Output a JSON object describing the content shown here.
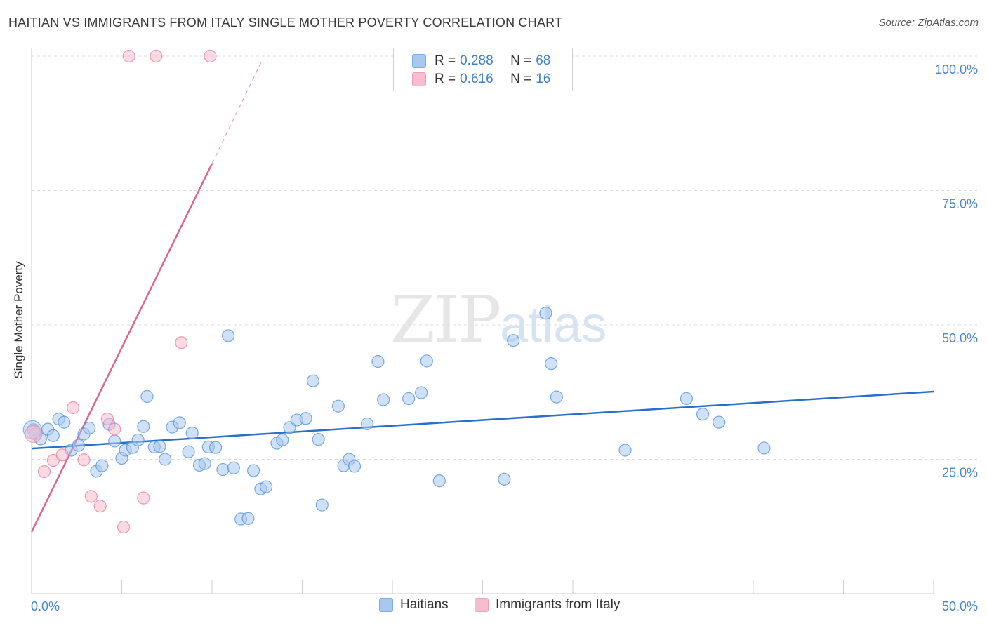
{
  "header": {
    "title": "HAITIAN VS IMMIGRANTS FROM ITALY SINGLE MOTHER POVERTY CORRELATION CHART",
    "source": "Source: ZipAtlas.com"
  },
  "watermark": {
    "zip": "ZIP",
    "atlas": "atlas"
  },
  "legend": {
    "rows": [
      {
        "r_label": "R =",
        "r_value": "0.288",
        "n_label": "N =",
        "n_value": "68",
        "color": "#a9c8ef"
      },
      {
        "r_label": "R =",
        "r_value": "0.616",
        "n_label": "N =",
        "n_value": "16",
        "color": "#f7bccd"
      }
    ]
  },
  "bottom_legend": {
    "haitians": "Haitians",
    "italy": "Immigrants from Italy"
  },
  "chart_data": {
    "type": "scatter",
    "title": "HAITIAN VS IMMIGRANTS FROM ITALY SINGLE MOTHER POVERTY CORRELATION CHART",
    "xlabel": "",
    "ylabel": "Single Mother Poverty",
    "xlim": [
      0,
      50
    ],
    "ylim": [
      0,
      100
    ],
    "x_tick_labels": [
      "0.0%",
      "50.0%"
    ],
    "y_tick_labels": [
      "25.0%",
      "50.0%",
      "75.0%",
      "100.0%"
    ],
    "y_ticks": [
      25,
      50,
      75,
      100
    ],
    "grid": true,
    "series": [
      {
        "name": "Haitians",
        "color": "#4d8fdc",
        "fill": "#a9c8ef",
        "points": [
          [
            0.1,
            30.5
          ],
          [
            0.5,
            28.8
          ],
          [
            0.9,
            30.6
          ],
          [
            1.2,
            29.4
          ],
          [
            1.5,
            32.5
          ],
          [
            1.8,
            31.9
          ],
          [
            2.2,
            26.7
          ],
          [
            2.6,
            27.6
          ],
          [
            2.9,
            29.7
          ],
          [
            3.2,
            30.8
          ],
          [
            3.6,
            22.8
          ],
          [
            3.9,
            23.8
          ],
          [
            4.3,
            31.5
          ],
          [
            4.6,
            28.4
          ],
          [
            5.0,
            25.2
          ],
          [
            5.2,
            26.7
          ],
          [
            5.6,
            27.2
          ],
          [
            5.9,
            28.6
          ],
          [
            6.2,
            31.1
          ],
          [
            6.4,
            36.7
          ],
          [
            6.8,
            27.3
          ],
          [
            7.1,
            27.4
          ],
          [
            7.4,
            25.0
          ],
          [
            7.8,
            31.0
          ],
          [
            8.2,
            31.8
          ],
          [
            8.7,
            26.4
          ],
          [
            8.9,
            29.9
          ],
          [
            9.3,
            23.9
          ],
          [
            9.6,
            24.2
          ],
          [
            9.8,
            27.3
          ],
          [
            10.2,
            27.2
          ],
          [
            10.6,
            23.1
          ],
          [
            10.9,
            48.0
          ],
          [
            11.2,
            23.4
          ],
          [
            11.6,
            13.9
          ],
          [
            12.0,
            14.0
          ],
          [
            12.3,
            22.9
          ],
          [
            12.7,
            19.5
          ],
          [
            13.0,
            19.9
          ],
          [
            13.6,
            28.0
          ],
          [
            13.9,
            28.6
          ],
          [
            14.3,
            30.9
          ],
          [
            14.7,
            32.3
          ],
          [
            15.2,
            32.6
          ],
          [
            15.6,
            39.6
          ],
          [
            15.9,
            28.7
          ],
          [
            16.1,
            16.5
          ],
          [
            17.0,
            34.9
          ],
          [
            17.3,
            23.8
          ],
          [
            17.6,
            25.0
          ],
          [
            17.9,
            23.7
          ],
          [
            18.6,
            31.6
          ],
          [
            19.2,
            43.2
          ],
          [
            19.5,
            36.1
          ],
          [
            20.9,
            36.3
          ],
          [
            21.6,
            37.4
          ],
          [
            21.9,
            43.3
          ],
          [
            22.6,
            21.0
          ],
          [
            26.2,
            21.3
          ],
          [
            26.7,
            47.1
          ],
          [
            28.5,
            52.2
          ],
          [
            28.8,
            42.8
          ],
          [
            29.1,
            36.6
          ],
          [
            32.9,
            26.7
          ],
          [
            36.3,
            36.3
          ],
          [
            37.2,
            33.4
          ],
          [
            38.1,
            31.9
          ],
          [
            40.6,
            27.1
          ]
        ],
        "trendline": {
          "x": [
            0,
            50
          ],
          "y": [
            27.0,
            37.6
          ]
        }
      },
      {
        "name": "Immigrants from Italy",
        "color": "#e8799d",
        "fill": "#f7bccd",
        "points": [
          [
            0.2,
            29.7
          ],
          [
            0.7,
            22.7
          ],
          [
            1.2,
            24.8
          ],
          [
            1.7,
            25.8
          ],
          [
            2.3,
            34.6
          ],
          [
            2.9,
            24.9
          ],
          [
            3.3,
            18.1
          ],
          [
            3.8,
            16.3
          ],
          [
            4.2,
            32.5
          ],
          [
            4.6,
            30.6
          ],
          [
            5.1,
            12.4
          ],
          [
            6.2,
            17.8
          ],
          [
            8.3,
            46.7
          ],
          [
            5.4,
            100.0
          ],
          [
            6.9,
            100.0
          ],
          [
            9.9,
            100.0
          ]
        ],
        "trendline": {
          "x": [
            0,
            10.0
          ],
          "y": [
            11.5,
            80.0
          ]
        },
        "trendline_extension": {
          "x": [
            10.0,
            12.8
          ],
          "y": [
            80.0,
            99.4
          ]
        }
      }
    ]
  }
}
